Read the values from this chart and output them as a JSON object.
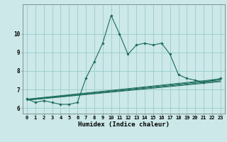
{
  "xlabel": "Humidex (Indice chaleur)",
  "background_color": "#cce8e8",
  "grid_color": "#99cccc",
  "line_color": "#1a6b5a",
  "xmin": -0.5,
  "xmax": 23.5,
  "ymin": 5.7,
  "ymax": 11.6,
  "yticks": [
    6,
    7,
    8,
    9,
    10
  ],
  "ytick_labels": [
    "6",
    "7",
    "8",
    "9",
    "10"
  ],
  "xticks": [
    0,
    1,
    2,
    3,
    4,
    5,
    6,
    7,
    8,
    9,
    10,
    11,
    12,
    13,
    14,
    15,
    16,
    17,
    18,
    19,
    20,
    21,
    22,
    23
  ],
  "main_series_x": [
    0,
    1,
    2,
    3,
    4,
    5,
    6,
    7,
    8,
    9,
    10,
    11,
    12,
    13,
    14,
    15,
    16,
    17,
    18,
    19,
    20,
    21,
    22,
    23
  ],
  "main_series_y": [
    6.5,
    6.3,
    6.4,
    6.3,
    6.2,
    6.2,
    6.3,
    7.6,
    8.5,
    9.5,
    11.0,
    10.0,
    8.9,
    9.4,
    9.5,
    9.4,
    9.5,
    8.9,
    7.8,
    7.6,
    7.5,
    7.4,
    7.5,
    7.6
  ],
  "linear_series": [
    {
      "x": [
        0,
        23
      ],
      "y": [
        6.42,
        7.42
      ]
    },
    {
      "x": [
        0,
        23
      ],
      "y": [
        6.44,
        7.47
      ]
    },
    {
      "x": [
        0,
        23
      ],
      "y": [
        6.46,
        7.52
      ]
    },
    {
      "x": [
        0,
        23
      ],
      "y": [
        6.48,
        7.57
      ]
    }
  ],
  "tick_fontsize": 5.0,
  "xlabel_fontsize": 6.5
}
